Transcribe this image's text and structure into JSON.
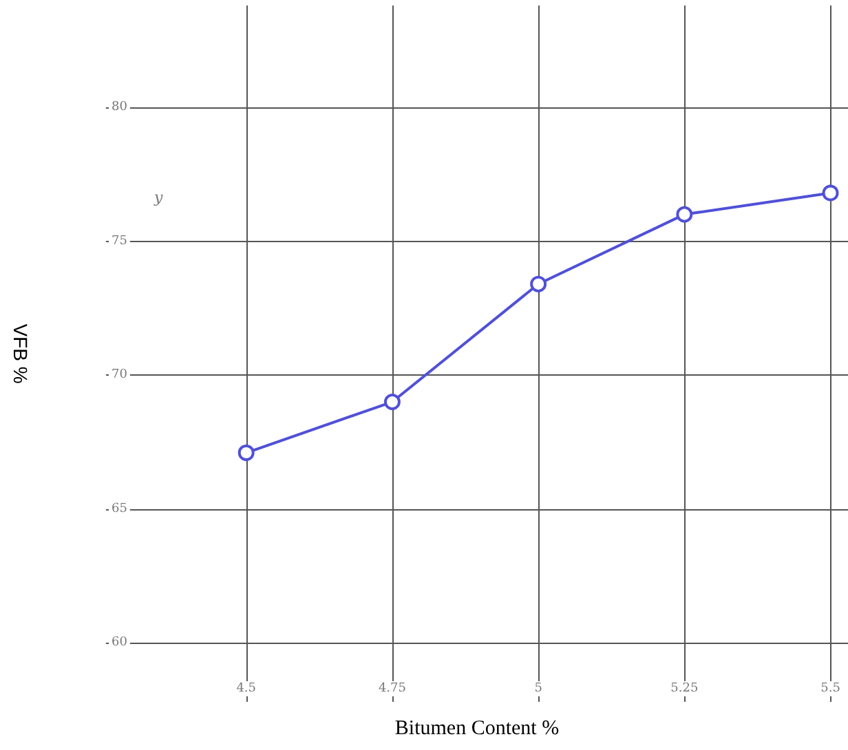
{
  "chart_data": {
    "type": "line",
    "xlabel": "Bitumen Content %",
    "ylabel": "VFB %",
    "x": [
      4.5,
      4.75,
      5,
      5.25,
      5.5
    ],
    "series": [
      {
        "color": "#5050d8",
        "values": [
          67.1,
          69.0,
          73.4,
          76.0,
          76.8
        ]
      }
    ],
    "xlim": [
      4.26,
      5.53
    ],
    "xticks": [
      4.5,
      4.75,
      5,
      5.25,
      5.5
    ],
    "ylim": [
      57.8,
      83.8
    ],
    "yticks": [
      60,
      65,
      70,
      75,
      80
    ],
    "annotations": [
      "y"
    ],
    "grid": true,
    "marker": "circle",
    "line_style": "solid"
  }
}
